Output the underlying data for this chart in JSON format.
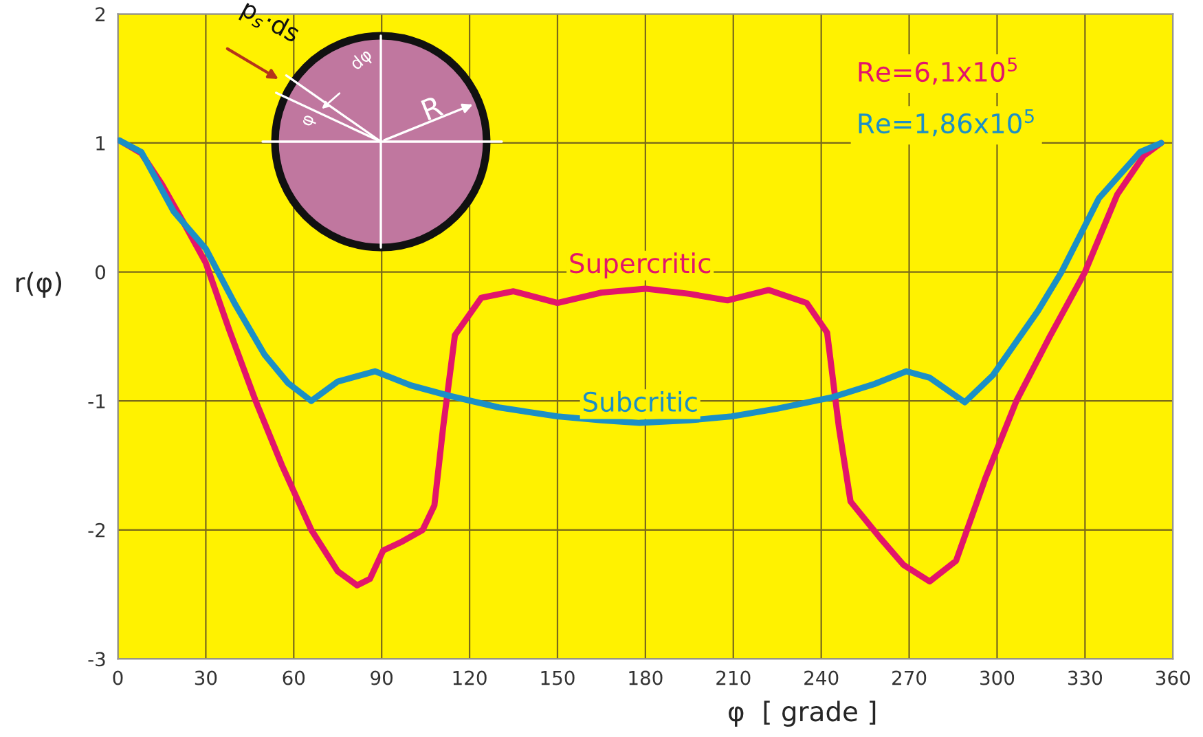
{
  "chart_data": {
    "type": "line",
    "xlabel": "φ  [ grade ]",
    "ylabel": "r(φ)",
    "xlim": [
      0,
      360
    ],
    "ylim": [
      -3,
      2
    ],
    "xticks": [
      0,
      30,
      60,
      90,
      120,
      150,
      180,
      210,
      240,
      270,
      300,
      330,
      360
    ],
    "yticks": [
      -3,
      -2,
      -1,
      0,
      1,
      2
    ],
    "grid": true,
    "legend": false,
    "line_style": "solid",
    "marker": "none",
    "series": [
      {
        "name": "Supercritic",
        "color": "#e2156b",
        "x": [
          0.5,
          8,
          15,
          22,
          30,
          38,
          47,
          56,
          66,
          75,
          81.6,
          86,
          90.5,
          97,
          104,
          108,
          111,
          115,
          124,
          135,
          150,
          165,
          180,
          195,
          208,
          222,
          235,
          242,
          246,
          250,
          260,
          268,
          277,
          286,
          296,
          306.6,
          318,
          330,
          341,
          350,
          356
        ],
        "values": [
          1.02,
          0.92,
          0.68,
          0.4,
          0.07,
          -0.45,
          -1.0,
          -1.5,
          -2.0,
          -2.32,
          -2.43,
          -2.38,
          -2.16,
          -2.09,
          -2.0,
          -1.81,
          -1.2,
          -0.49,
          -0.2,
          -0.15,
          -0.24,
          -0.16,
          -0.13,
          -0.17,
          -0.22,
          -0.14,
          -0.24,
          -0.47,
          -1.2,
          -1.78,
          -2.06,
          -2.27,
          -2.4,
          -2.24,
          -1.6,
          -1.0,
          -0.5,
          0.0,
          0.6,
          0.9,
          1.0
        ]
      },
      {
        "name": "Subcritic",
        "color": "#1b8fc6",
        "x": [
          0.5,
          8,
          19,
          30,
          40,
          50,
          58,
          66,
          75,
          87.8,
          100,
          113,
          130,
          150,
          165,
          178,
          195,
          209.5,
          225,
          244,
          258,
          269,
          277,
          289,
          298.6,
          314,
          322,
          334.7,
          348.8,
          356
        ],
        "values": [
          1.02,
          0.93,
          0.47,
          0.18,
          -0.25,
          -0.64,
          -0.86,
          -1.0,
          -0.85,
          -0.77,
          -0.88,
          -0.96,
          -1.05,
          -1.12,
          -1.15,
          -1.17,
          -1.15,
          -1.12,
          -1.06,
          -0.97,
          -0.87,
          -0.77,
          -0.82,
          -1.01,
          -0.8,
          -0.3,
          0.0,
          0.57,
          0.93,
          1.0
        ]
      }
    ],
    "annotations": [
      "Re=6,1x10$^{5}$",
      "Re=1,86x10$^{5}$",
      "p$_{s}$·ds",
      "dφ",
      "φ",
      "R"
    ]
  }
}
